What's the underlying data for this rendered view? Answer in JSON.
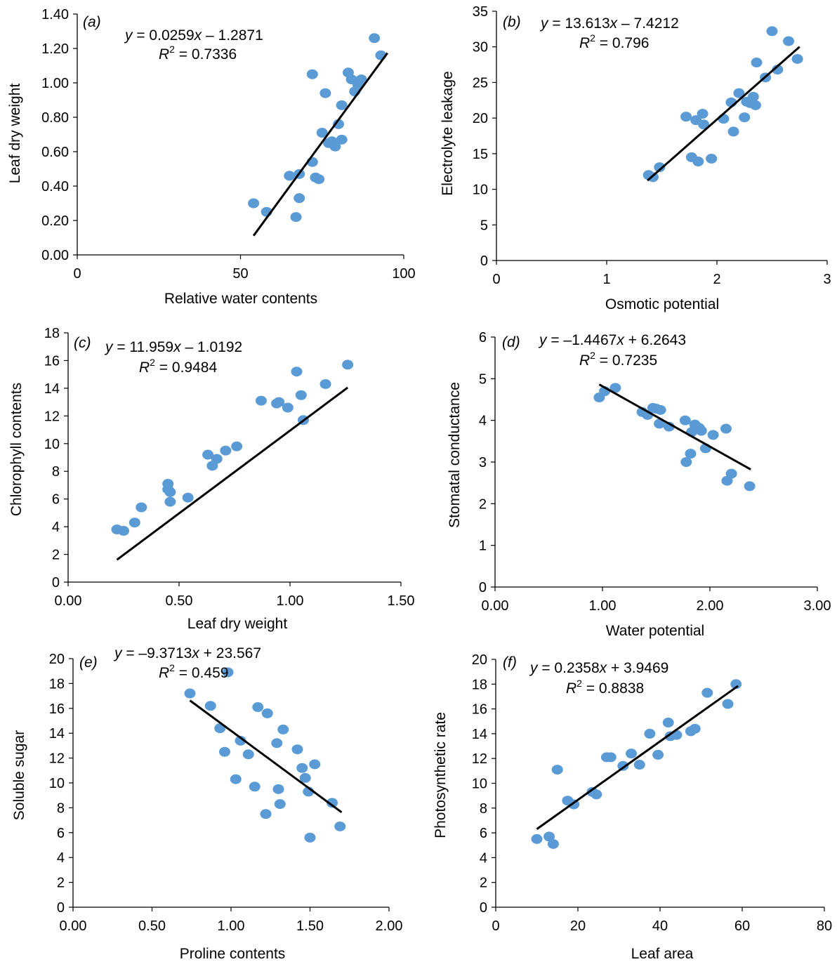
{
  "chart_data": [
    {
      "type": "scatter",
      "panel_label": "(a)",
      "xlabel": "Relative water contents",
      "ylabel": "Leaf dry weight",
      "xlim": [
        0,
        100
      ],
      "ylim": [
        0,
        1.4
      ],
      "xticks": [
        "0",
        "50",
        "100"
      ],
      "yticks": [
        "0.00",
        "0.20",
        "0.40",
        "0.60",
        "0.80",
        "1.00",
        "1.20",
        "1.40"
      ],
      "equation": {
        "y_prefix": "y",
        "body": " = 0.0259",
        "x_var": "x",
        "tail": " – 1.2871"
      },
      "r2": {
        "label": "R",
        "sup": "2",
        "value": " = 0.7336"
      },
      "trendline": {
        "slope": 0.0259,
        "intercept": -1.2871,
        "x_range": [
          54,
          95
        ]
      },
      "series": [
        {
          "x": [
            54,
            58,
            65,
            67,
            68,
            68,
            72,
            72,
            73,
            74,
            75,
            76,
            77,
            78,
            79,
            80,
            81,
            81,
            83,
            84,
            85,
            86,
            87,
            91,
            93
          ],
          "y": [
            0.3,
            0.25,
            0.46,
            0.22,
            0.47,
            0.33,
            1.05,
            0.54,
            0.45,
            0.44,
            0.71,
            0.94,
            0.65,
            0.66,
            0.63,
            0.76,
            0.87,
            0.67,
            1.06,
            1.02,
            0.95,
            0.99,
            1.02,
            1.26,
            1.16
          ]
        }
      ],
      "marker_color": "#5b9bd5"
    },
    {
      "type": "scatter",
      "panel_label": "(b)",
      "xlabel": "Osmotic potential",
      "ylabel": "Electrolyte leakage",
      "xlim": [
        0,
        3
      ],
      "ylim": [
        0,
        35
      ],
      "xticks": [
        "0",
        "1",
        "2",
        "3"
      ],
      "yticks": [
        "0",
        "5",
        "10",
        "15",
        "20",
        "25",
        "30",
        "35"
      ],
      "equation": {
        "y_prefix": "y",
        "body": " = 13.613",
        "x_var": "x",
        "tail": " – 7.4212"
      },
      "r2": {
        "label": "R",
        "sup": "2",
        "value": " = 0.796"
      },
      "trendline": {
        "slope": 13.613,
        "intercept": -7.4212,
        "x_range": [
          1.37,
          2.75
        ]
      },
      "series": [
        {
          "x": [
            1.38,
            1.42,
            1.48,
            1.72,
            1.77,
            1.81,
            1.83,
            1.87,
            1.88,
            1.95,
            2.06,
            2.13,
            2.15,
            2.2,
            2.25,
            2.27,
            2.3,
            2.33,
            2.35,
            2.36,
            2.44,
            2.5,
            2.55,
            2.65,
            2.73
          ],
          "y": [
            12.0,
            11.7,
            13.1,
            20.2,
            14.5,
            19.7,
            13.9,
            20.6,
            19.1,
            14.3,
            19.9,
            22.2,
            18.1,
            23.5,
            20.1,
            22.3,
            22.1,
            23.0,
            21.8,
            27.8,
            25.7,
            32.2,
            26.8,
            30.8,
            28.3
          ]
        }
      ],
      "marker_color": "#5b9bd5"
    },
    {
      "type": "scatter",
      "panel_label": "(c)",
      "xlabel": "Leaf dry weight",
      "ylabel": "Chlorophyll contents",
      "xlim": [
        0,
        1.5
      ],
      "ylim": [
        0,
        18
      ],
      "xticks": [
        "0.00",
        "0.50",
        "1.00",
        "1.50"
      ],
      "yticks": [
        "0",
        "2",
        "4",
        "6",
        "8",
        "10",
        "12",
        "14",
        "16",
        "18"
      ],
      "equation": {
        "y_prefix": "y",
        "body": " = 11.959",
        "x_var": "x",
        "tail": " – 1.0192"
      },
      "r2": {
        "label": "R",
        "sup": "2",
        "value": " = 0.9484"
      },
      "trendline": {
        "slope": 11.959,
        "intercept": -1.0192,
        "x_range": [
          0.22,
          1.26
        ]
      },
      "series": [
        {
          "x": [
            0.22,
            0.25,
            0.3,
            0.33,
            0.45,
            0.45,
            0.46,
            0.46,
            0.54,
            0.63,
            0.65,
            0.67,
            0.71,
            0.76,
            0.87,
            0.94,
            0.95,
            0.99,
            1.03,
            1.05,
            1.06,
            1.16,
            1.26
          ],
          "y": [
            3.8,
            3.7,
            4.3,
            5.4,
            6.7,
            7.1,
            5.8,
            6.5,
            6.1,
            9.2,
            8.4,
            8.9,
            9.5,
            9.8,
            13.1,
            12.9,
            13.0,
            12.6,
            15.2,
            13.5,
            11.7,
            14.3,
            15.7
          ]
        }
      ],
      "marker_color": "#5b9bd5"
    },
    {
      "type": "scatter",
      "panel_label": "(d)",
      "xlabel": "Water potential",
      "ylabel": "Stomatal conductance",
      "xlim": [
        0,
        3
      ],
      "ylim": [
        0,
        6
      ],
      "xticks": [
        "0.00",
        "1.00",
        "2.00",
        "3.00"
      ],
      "yticks": [
        "0",
        "1",
        "2",
        "3",
        "4",
        "5",
        "6"
      ],
      "equation": {
        "y_prefix": "y",
        "body": " = –1.4467",
        "x_var": "x",
        "tail": " + 6.2643"
      },
      "r2": {
        "label": "R",
        "sup": "2",
        "value": " = 0.7235"
      },
      "trendline": {
        "slope": -1.4467,
        "intercept": 6.2643,
        "x_range": [
          0.97,
          2.38
        ]
      },
      "series": [
        {
          "x": [
            0.97,
            1.02,
            1.12,
            1.37,
            1.42,
            1.47,
            1.5,
            1.53,
            1.54,
            1.62,
            1.77,
            1.78,
            1.82,
            1.83,
            1.86,
            1.9,
            1.92,
            1.96,
            2.03,
            2.15,
            2.16,
            2.2,
            2.37
          ],
          "y": [
            4.55,
            4.7,
            4.78,
            4.2,
            4.13,
            4.3,
            4.28,
            3.92,
            4.25,
            3.85,
            4.0,
            3.0,
            3.2,
            3.72,
            3.9,
            3.82,
            3.75,
            3.33,
            3.65,
            3.8,
            2.55,
            2.72,
            2.42
          ]
        }
      ],
      "marker_color": "#5b9bd5"
    },
    {
      "type": "scatter",
      "panel_label": "(e)",
      "xlabel": "Proline contents",
      "ylabel": "Soluble sugar",
      "xlim": [
        0,
        2
      ],
      "ylim": [
        0,
        20
      ],
      "xticks": [
        "0.00",
        "0.50",
        "1.00",
        "1.50",
        "2.00"
      ],
      "yticks": [
        "0",
        "2",
        "4",
        "6",
        "8",
        "10",
        "12",
        "14",
        "16",
        "18",
        "20"
      ],
      "equation": {
        "y_prefix": "y",
        "body": " = –9.3713",
        "x_var": "x",
        "tail": " + 23.567"
      },
      "r2": {
        "label": "R",
        "sup": "2",
        "value": " = 0.459"
      },
      "trendline": {
        "slope": -9.3713,
        "intercept": 23.567,
        "x_range": [
          0.74,
          1.7
        ]
      },
      "series": [
        {
          "x": [
            0.74,
            0.87,
            0.93,
            0.96,
            0.98,
            1.03,
            1.06,
            1.11,
            1.15,
            1.17,
            1.22,
            1.23,
            1.29,
            1.3,
            1.31,
            1.33,
            1.42,
            1.45,
            1.47,
            1.49,
            1.5,
            1.53,
            1.64,
            1.69
          ],
          "y": [
            17.2,
            16.2,
            14.4,
            12.5,
            18.9,
            10.3,
            13.4,
            12.3,
            9.7,
            16.1,
            7.5,
            15.6,
            13.2,
            9.5,
            8.3,
            14.3,
            12.7,
            11.2,
            10.4,
            9.3,
            5.6,
            11.5,
            8.4,
            6.5
          ]
        }
      ],
      "marker_color": "#5b9bd5"
    },
    {
      "type": "scatter",
      "panel_label": "(f)",
      "xlabel": "Leaf area",
      "ylabel": "Photosynthetic rate",
      "xlim": [
        0,
        80
      ],
      "ylim": [
        0,
        20
      ],
      "xticks": [
        "0",
        "20",
        "40",
        "60",
        "80"
      ],
      "yticks": [
        "0",
        "2",
        "4",
        "6",
        "8",
        "10",
        "12",
        "14",
        "16",
        "18",
        "20"
      ],
      "equation": {
        "y_prefix": "y",
        "body": " = 0.2358",
        "x_var": "x",
        "tail": " + 3.9469"
      },
      "r2": {
        "label": "R",
        "sup": "2",
        "value": " = 0.8838"
      },
      "trendline": {
        "slope": 0.2358,
        "intercept": 3.9469,
        "x_range": [
          10,
          59
        ]
      },
      "series": [
        {
          "x": [
            10,
            13,
            14,
            15,
            17.5,
            19,
            23.5,
            24.5,
            27,
            28,
            31,
            33,
            35,
            37.5,
            39.5,
            42,
            42.5,
            44,
            47.5,
            48.5,
            51.5,
            56.5,
            58.5
          ],
          "y": [
            5.5,
            5.7,
            5.1,
            11.1,
            8.6,
            8.3,
            9.3,
            9.1,
            12.1,
            12.1,
            11.4,
            12.4,
            11.5,
            14.0,
            12.3,
            14.9,
            13.8,
            13.9,
            14.2,
            14.4,
            17.3,
            16.4,
            18.0
          ]
        }
      ],
      "marker_color": "#5b9bd5"
    }
  ]
}
